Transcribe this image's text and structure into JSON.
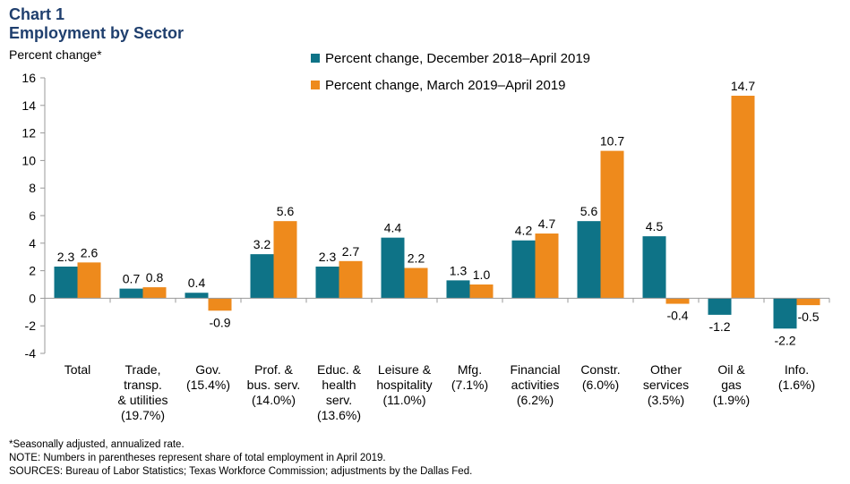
{
  "header": {
    "chart_label": "Chart 1",
    "title": "Employment by Sector",
    "ylabel": "Percent change*"
  },
  "footnotes": {
    "seasonal": "*Seasonally adjusted, annualized rate.",
    "note": "NOTE: Numbers in parentheses represent share of total employment in April 2019.",
    "sources": "SOURCES: Bureau of Labor Statistics; Texas Workforce Commission; adjustments by the Dallas Fed."
  },
  "colors": {
    "series1": "#0e7387",
    "series2": "#ee8a1c",
    "axis": "#999999"
  },
  "chart_data": {
    "type": "bar",
    "title": "Employment by Sector",
    "ylabel": "Percent change*",
    "ylim": [
      -4,
      16
    ],
    "yticks": [
      -4,
      -2,
      0,
      2,
      4,
      6,
      8,
      10,
      12,
      14,
      16
    ],
    "grid": false,
    "legend_position": "top-center",
    "categories": [
      [
        "Total"
      ],
      [
        "Trade,",
        "transp.",
        "& utilities",
        "(19.7%)"
      ],
      [
        "Gov.",
        "(15.4%)"
      ],
      [
        "Prof. &",
        "bus. serv.",
        "(14.0%)"
      ],
      [
        "Educ. &",
        "health",
        "serv.",
        "(13.6%)"
      ],
      [
        "Leisure &",
        "hospitality",
        "(11.0%)"
      ],
      [
        "Mfg.",
        "(7.1%)"
      ],
      [
        "Financial",
        "activities",
        "(6.2%)"
      ],
      [
        "Constr.",
        "(6.0%)"
      ],
      [
        "Other",
        "services",
        "(3.5%)"
      ],
      [
        "Oil &",
        "gas",
        "(1.9%)"
      ],
      [
        "Info.",
        "(1.6%)"
      ]
    ],
    "series": [
      {
        "name": "Percent change, December 2018–April 2019",
        "values": [
          2.3,
          0.7,
          0.4,
          3.2,
          2.3,
          4.4,
          1.3,
          4.2,
          5.6,
          4.5,
          -1.2,
          -2.2
        ]
      },
      {
        "name": "Percent change, March 2019–April 2019",
        "values": [
          2.6,
          0.8,
          -0.9,
          5.6,
          2.7,
          2.2,
          1.0,
          4.7,
          10.7,
          -0.4,
          14.7,
          -0.5
        ]
      }
    ]
  }
}
